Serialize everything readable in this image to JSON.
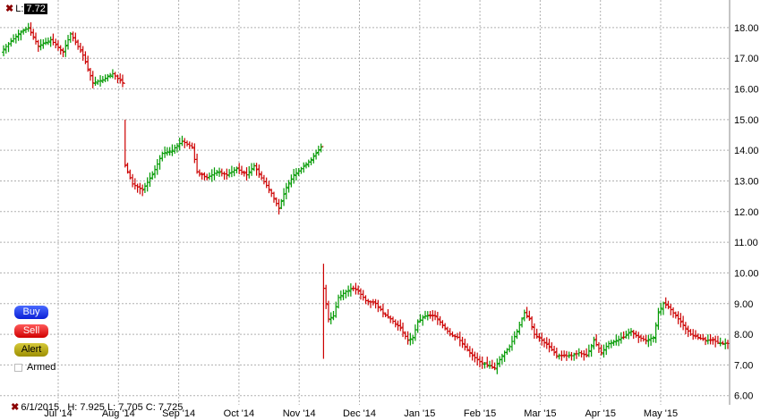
{
  "header": {
    "label": "L:",
    "value": "7.72"
  },
  "footer": {
    "info": "6/1/2015   H: 7.925 L: 7.705 C: 7.725"
  },
  "buttons": {
    "buy": "Buy",
    "sell": "Sell",
    "alert": "Alert",
    "armed": "Armed"
  },
  "colors": {
    "up": "#009900",
    "down": "#cc0000",
    "grid": "#b0b0b0"
  },
  "chart_data": {
    "type": "ohlc",
    "ylim": [
      5.7,
      18.9
    ],
    "y_ticks": [
      "6.00",
      "7.00",
      "8.00",
      "9.00",
      "10.00",
      "11.00",
      "12.00",
      "13.00",
      "14.00",
      "15.00",
      "16.00",
      "17.00",
      "18.00"
    ],
    "x_ticks": [
      "Jul '14",
      "Aug '14",
      "Sep '14",
      "Oct '14",
      "Nov '14",
      "Dec '14",
      "Jan '15",
      "Feb '15",
      "Mar '15",
      "Apr '15",
      "May '15"
    ],
    "grid": true,
    "anchors": [
      [
        0,
        17.3
      ],
      [
        6,
        17.8
      ],
      [
        10,
        18.0
      ],
      [
        14,
        17.4
      ],
      [
        19,
        17.6
      ],
      [
        24,
        17.2
      ],
      [
        27,
        17.8
      ],
      [
        32,
        17.1
      ],
      [
        36,
        16.2
      ],
      [
        40,
        16.3
      ],
      [
        44,
        16.5
      ],
      [
        48,
        16.2
      ],
      [
        49,
        13.5
      ],
      [
        52,
        12.9
      ],
      [
        56,
        12.7
      ],
      [
        60,
        13.2
      ],
      [
        64,
        13.9
      ],
      [
        68,
        14.0
      ],
      [
        72,
        14.3
      ],
      [
        76,
        14.1
      ],
      [
        78,
        13.3
      ],
      [
        82,
        13.1
      ],
      [
        86,
        13.3
      ],
      [
        90,
        13.2
      ],
      [
        94,
        13.4
      ],
      [
        98,
        13.2
      ],
      [
        101,
        13.5
      ],
      [
        104,
        13.1
      ],
      [
        108,
        12.6
      ],
      [
        111,
        12.1
      ],
      [
        114,
        12.8
      ],
      [
        117,
        13.2
      ],
      [
        120,
        13.4
      ],
      [
        124,
        13.7
      ],
      [
        128,
        14.1
      ],
      [
        129,
        9.5
      ],
      [
        131,
        8.5
      ],
      [
        133,
        8.6
      ],
      [
        135,
        9.2
      ],
      [
        138,
        9.4
      ],
      [
        141,
        9.5
      ],
      [
        143,
        9.4
      ],
      [
        146,
        9.1
      ],
      [
        150,
        9.0
      ],
      [
        153,
        8.7
      ],
      [
        156,
        8.5
      ],
      [
        160,
        8.2
      ],
      [
        163,
        7.8
      ],
      [
        165,
        7.9
      ],
      [
        167,
        8.4
      ],
      [
        170,
        8.6
      ],
      [
        174,
        8.6
      ],
      [
        177,
        8.3
      ],
      [
        180,
        8.0
      ],
      [
        183,
        7.9
      ],
      [
        186,
        7.6
      ],
      [
        189,
        7.3
      ],
      [
        192,
        7.1
      ],
      [
        195,
        7.0
      ],
      [
        198,
        6.9
      ],
      [
        201,
        7.3
      ],
      [
        204,
        7.6
      ],
      [
        207,
        8.1
      ],
      [
        210,
        8.7
      ],
      [
        212,
        8.5
      ],
      [
        214,
        8.0
      ],
      [
        217,
        7.8
      ],
      [
        220,
        7.6
      ],
      [
        223,
        7.3
      ],
      [
        226,
        7.3
      ],
      [
        229,
        7.3
      ],
      [
        232,
        7.4
      ],
      [
        235,
        7.3
      ],
      [
        238,
        7.8
      ],
      [
        241,
        7.4
      ],
      [
        244,
        7.7
      ],
      [
        247,
        7.8
      ],
      [
        250,
        7.9
      ],
      [
        253,
        8.1
      ],
      [
        256,
        7.9
      ],
      [
        259,
        7.8
      ],
      [
        262,
        7.9
      ],
      [
        264,
        8.7
      ],
      [
        266,
        9.0
      ],
      [
        268,
        8.9
      ],
      [
        271,
        8.6
      ],
      [
        274,
        8.3
      ],
      [
        277,
        8.0
      ],
      [
        280,
        7.9
      ],
      [
        283,
        7.8
      ],
      [
        286,
        7.8
      ],
      [
        289,
        7.7
      ],
      [
        292,
        7.7
      ]
    ],
    "footer_bar": {
      "date": "6/1/2015",
      "high": 7.925,
      "low": 7.705,
      "close": 7.725
    }
  }
}
